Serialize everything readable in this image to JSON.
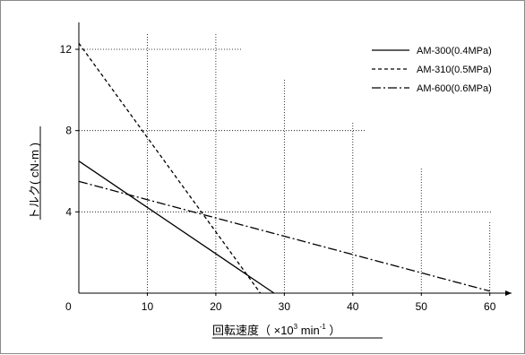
{
  "chart_data": {
    "type": "line",
    "xlabel": "回転速度（ ×10³ min⁻¹ ）",
    "xlabel_parts": {
      "main": "回転速度（ ×10",
      "exp": "3",
      "unit": " min",
      "unit_exp": "-1",
      "close": " ）"
    },
    "ylabel": "トルク( cN·m )",
    "xlim": [
      0,
      62
    ],
    "ylim": [
      0,
      13.5
    ],
    "x_ticks": [
      10,
      20,
      30,
      40,
      50,
      60
    ],
    "y_ticks": [
      4,
      8,
      12
    ],
    "origin_label": "0",
    "grid": "dotted",
    "legend_position": "top-right",
    "series": [
      {
        "name": "AM-300(0.4MPa)",
        "color": "#000000",
        "dash": "solid",
        "x": [
          0,
          28.5
        ],
        "y": [
          6.5,
          0
        ]
      },
      {
        "name": "AM-310(0.5MPa)",
        "color": "#000000",
        "dash": "dashed",
        "x": [
          0,
          26.5
        ],
        "y": [
          12.3,
          0
        ]
      },
      {
        "name": "AM-600(0.6MPa)",
        "color": "#000000",
        "dash": "dashdot",
        "x": [
          0,
          60
        ],
        "y": [
          5.5,
          0.1
        ]
      }
    ]
  }
}
